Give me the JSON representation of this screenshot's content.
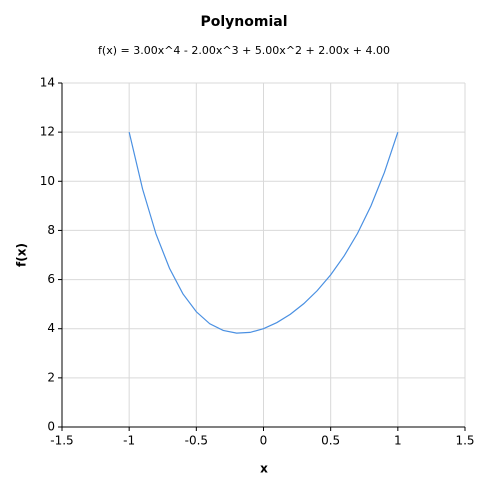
{
  "chart_data": {
    "type": "line",
    "title": "Polynomial",
    "subtitle": "f(x) = 3.00x^4 - 2.00x^3 + 5.00x^2 + 2.00x + 4.00",
    "x_label": "x",
    "y_label": "f(x)",
    "x": [
      -1,
      -0.9,
      -0.8,
      -0.7,
      -0.6,
      -0.5,
      -0.4,
      -0.3,
      -0.2,
      -0.1,
      0,
      0.1,
      0.2,
      0.3,
      0.4,
      0.5,
      0.6,
      0.7,
      0.8,
      0.9,
      1
    ],
    "series": [
      {
        "name": "f(x)",
        "color": "#4a90e2",
        "values": [
          12,
          9.68,
          7.85,
          6.46,
          5.42,
          4.69,
          4.2,
          3.93,
          3.82,
          3.85,
          4,
          4.25,
          4.59,
          5.02,
          5.55,
          6.19,
          6.96,
          7.88,
          9,
          10.36,
          12
        ]
      }
    ],
    "xlim": [
      -1.5,
      1.5
    ],
    "xticks": [
      -1.5,
      -1,
      -0.5,
      0,
      0.5,
      1,
      1.5
    ],
    "ylim": [
      0,
      14
    ],
    "yticks": [
      0,
      2,
      4,
      6,
      8,
      10,
      12,
      14
    ],
    "grid": true
  }
}
